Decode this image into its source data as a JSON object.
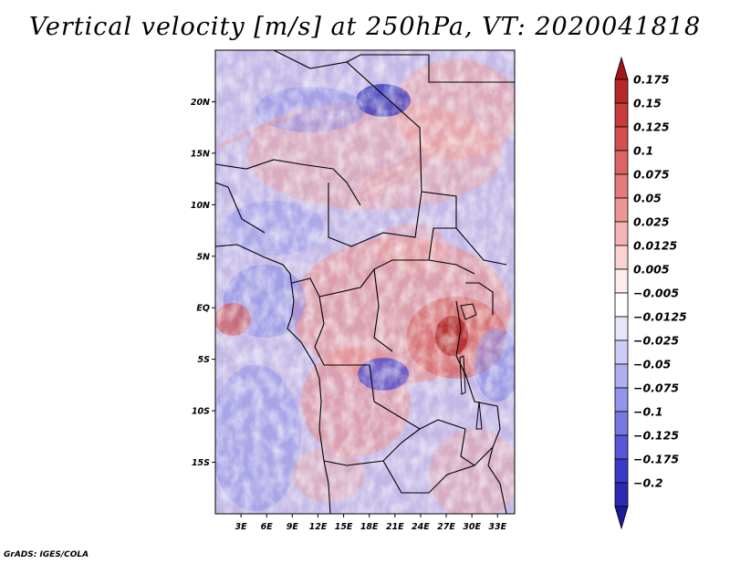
{
  "title": "Vertical velocity [m/s] at 250hPa, VT: 2020041818",
  "credit": "GrADS: IGES/COLA",
  "map": {
    "lat_range": [
      -20,
      25
    ],
    "lon_range": [
      0,
      35
    ],
    "lat_ticks": [
      "20N",
      "15N",
      "10N",
      "5N",
      "EQ",
      "5S",
      "10S",
      "15S"
    ],
    "lon_ticks": [
      "3E",
      "6E",
      "9E",
      "12E",
      "15E",
      "18E",
      "21E",
      "24E",
      "27E",
      "30E",
      "33E"
    ]
  },
  "colorbar": {
    "labels": [
      "0.175",
      "0.15",
      "0.125",
      "0.1",
      "0.075",
      "0.05",
      "0.025",
      "0.0125",
      "0.005",
      "−0.005",
      "−0.0125",
      "−0.025",
      "−0.05",
      "−0.075",
      "−0.1",
      "−0.125",
      "−0.175",
      "−0.2"
    ],
    "colors": [
      "#a01818",
      "#b82828",
      "#c83c3c",
      "#d45050",
      "#dc6464",
      "#e47a7a",
      "#ec9696",
      "#f4b4b4",
      "#fad2d2",
      "#fdecec",
      "#ffffff",
      "#e6e6fb",
      "#ccccf6",
      "#b0b0f0",
      "#9494ea",
      "#7878e2",
      "#5858d6",
      "#3a3ac8",
      "#2a2ab2",
      "#1c1c96"
    ]
  }
}
